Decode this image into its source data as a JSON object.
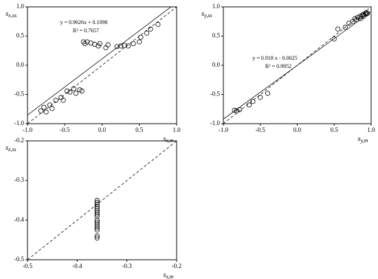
{
  "chart_data": [
    {
      "type": "scatter",
      "xlabel": "s",
      "xlabel_sub": "x,m",
      "ylabel": "s",
      "ylabel_sub": "x,ss",
      "annotations": [
        "y = 0.9626x + 0.1098",
        "R² = 0.7657"
      ],
      "fit": {
        "slope": 0.9626,
        "intercept": 0.1098
      },
      "identity_line": true,
      "color": "#000000",
      "x": [
        -0.82,
        -0.78,
        -0.75,
        -0.7,
        -0.67,
        -0.62,
        -0.55,
        -0.52,
        -0.47,
        -0.43,
        -0.38,
        -0.35,
        -0.3,
        -0.27,
        -0.25,
        -0.23,
        -0.2,
        -0.15,
        -0.1,
        -0.05,
        -0.03,
        0.05,
        0.08,
        0.2,
        0.25,
        0.3,
        0.35,
        0.42,
        0.5,
        0.52,
        0.6,
        0.65,
        0.75
      ],
      "values": [
        -0.78,
        -0.72,
        -0.8,
        -0.68,
        -0.74,
        -0.6,
        -0.55,
        -0.6,
        -0.44,
        -0.46,
        -0.4,
        -0.48,
        -0.42,
        -0.44,
        0.4,
        0.37,
        0.4,
        0.38,
        0.36,
        0.33,
        0.37,
        0.3,
        0.35,
        0.32,
        0.33,
        0.34,
        0.33,
        0.37,
        0.4,
        0.48,
        0.55,
        0.62,
        0.7
      ],
      "xlim": [
        -1,
        1
      ],
      "xticks": [
        {
          "value": -1,
          "label": "-1.0"
        },
        -0.5,
        {
          "value": 0,
          "label": "0.0"
        },
        0.5,
        {
          "value": 1,
          "label": "1.0"
        }
      ],
      "ylim": [
        -1,
        1
      ],
      "yticks": [
        {
          "value": -1,
          "label": "-1.0"
        },
        -0.5,
        {
          "value": 0,
          "label": "0.0"
        },
        0.5,
        {
          "value": 1,
          "label": "1.0"
        }
      ]
    },
    {
      "type": "scatter",
      "xlabel": "s",
      "xlabel_sub": "y,m",
      "ylabel": "s",
      "ylabel_sub": "y,ss",
      "annotations": [
        "y = 0.918 x - 0.0025",
        "R² = 0.9952"
      ],
      "fit": {
        "slope": 0.918,
        "intercept": -0.0025
      },
      "identity_line": true,
      "color": "#000000",
      "x": [
        -0.85,
        -0.82,
        -0.78,
        -0.65,
        -0.6,
        -0.5,
        -0.4,
        0.5,
        0.55,
        0.65,
        0.7,
        0.75,
        0.8,
        0.82,
        0.85,
        0.88,
        0.9,
        0.92,
        0.93,
        0.94,
        0.95,
        0.9,
        0.86,
        0.78
      ],
      "values": [
        -0.77,
        -0.78,
        -0.76,
        -0.68,
        -0.62,
        -0.55,
        -0.48,
        0.45,
        0.62,
        0.65,
        0.72,
        0.75,
        0.78,
        0.82,
        0.84,
        0.86,
        0.87,
        0.88,
        0.9,
        0.88,
        0.89,
        0.84,
        0.8,
        0.8
      ],
      "xlim": [
        -1,
        1
      ],
      "xticks": [
        {
          "value": -1,
          "label": "-1.0"
        },
        -0.5,
        {
          "value": 0,
          "label": "0.0"
        },
        0.5,
        {
          "value": 1,
          "label": "1.0"
        }
      ],
      "ylim": [
        -1,
        1
      ],
      "yticks": [
        {
          "value": -1,
          "label": "-1.0"
        },
        -0.5,
        {
          "value": 0,
          "label": "0.0"
        },
        0.5,
        {
          "value": 1,
          "label": "1.0"
        }
      ]
    },
    {
      "type": "scatter",
      "xlabel": "s",
      "xlabel_sub": "z,m",
      "ylabel": "s",
      "ylabel_sub": "z,ss",
      "identity_line": true,
      "color": "#000000",
      "x": [
        -0.36,
        -0.36,
        -0.36,
        -0.36,
        -0.36,
        -0.36,
        -0.36,
        -0.36,
        -0.36,
        -0.36,
        -0.36,
        -0.36,
        -0.36,
        -0.36,
        -0.36,
        -0.36,
        -0.36
      ],
      "values": [
        -0.35,
        -0.355,
        -0.36,
        -0.365,
        -0.37,
        -0.375,
        -0.38,
        -0.385,
        -0.39,
        -0.4,
        -0.405,
        -0.41,
        -0.415,
        -0.42,
        -0.425,
        -0.44,
        -0.445
      ],
      "xlim": [
        -0.5,
        -0.2
      ],
      "xticks": [
        -0.5,
        -0.4,
        -0.3,
        -0.2
      ],
      "ylim": [
        -0.5,
        -0.2
      ],
      "yticks": [
        -0.5,
        -0.4,
        -0.3,
        -0.2
      ]
    }
  ]
}
